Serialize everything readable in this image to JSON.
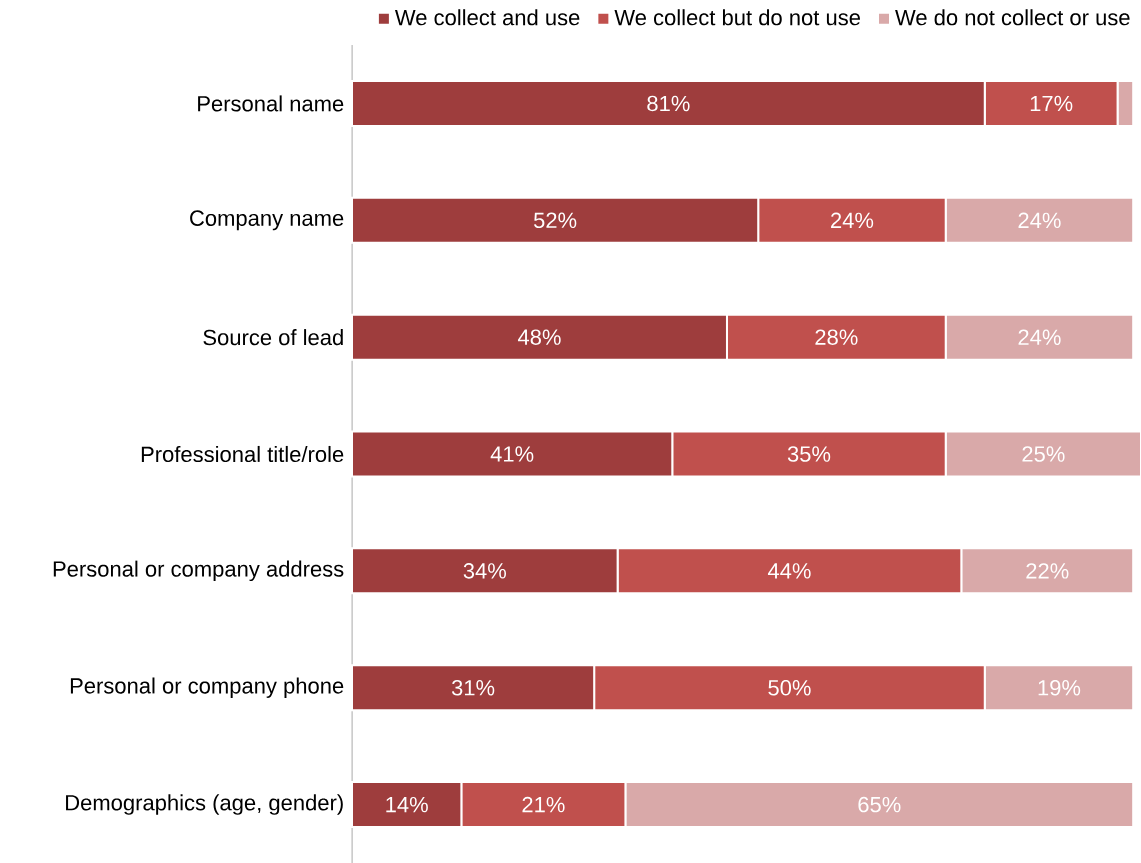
{
  "chart_data": {
    "type": "bar",
    "orientation": "horizontal",
    "stacked": true,
    "legend": "top",
    "categories": [
      "Personal name",
      "Company name",
      "Source of lead",
      "Professional title/role",
      "Personal or company address",
      "Personal or company phone",
      "Demographics (age, gender)"
    ],
    "series": [
      {
        "name": "We collect and use",
        "color": "#9e3d3d",
        "values": [
          81,
          52,
          48,
          41,
          34,
          31,
          14
        ],
        "value_labels": [
          "81%",
          "52%",
          "48%",
          "41%",
          "34%",
          "31%",
          "14%"
        ]
      },
      {
        "name": "We collect but do not use",
        "color": "#c0504d",
        "values": [
          17,
          24,
          28,
          35,
          44,
          50,
          21
        ],
        "value_labels": [
          "17%",
          "24%",
          "28%",
          "35%",
          "44%",
          "50%",
          "21%"
        ]
      },
      {
        "name": "We do not collect or use",
        "color": "#d9a9a9",
        "values": [
          2,
          24,
          24,
          25,
          22,
          19,
          65
        ],
        "value_labels": [
          null,
          "24%",
          "24%",
          "25%",
          "22%",
          "19%",
          "65%"
        ]
      }
    ]
  }
}
